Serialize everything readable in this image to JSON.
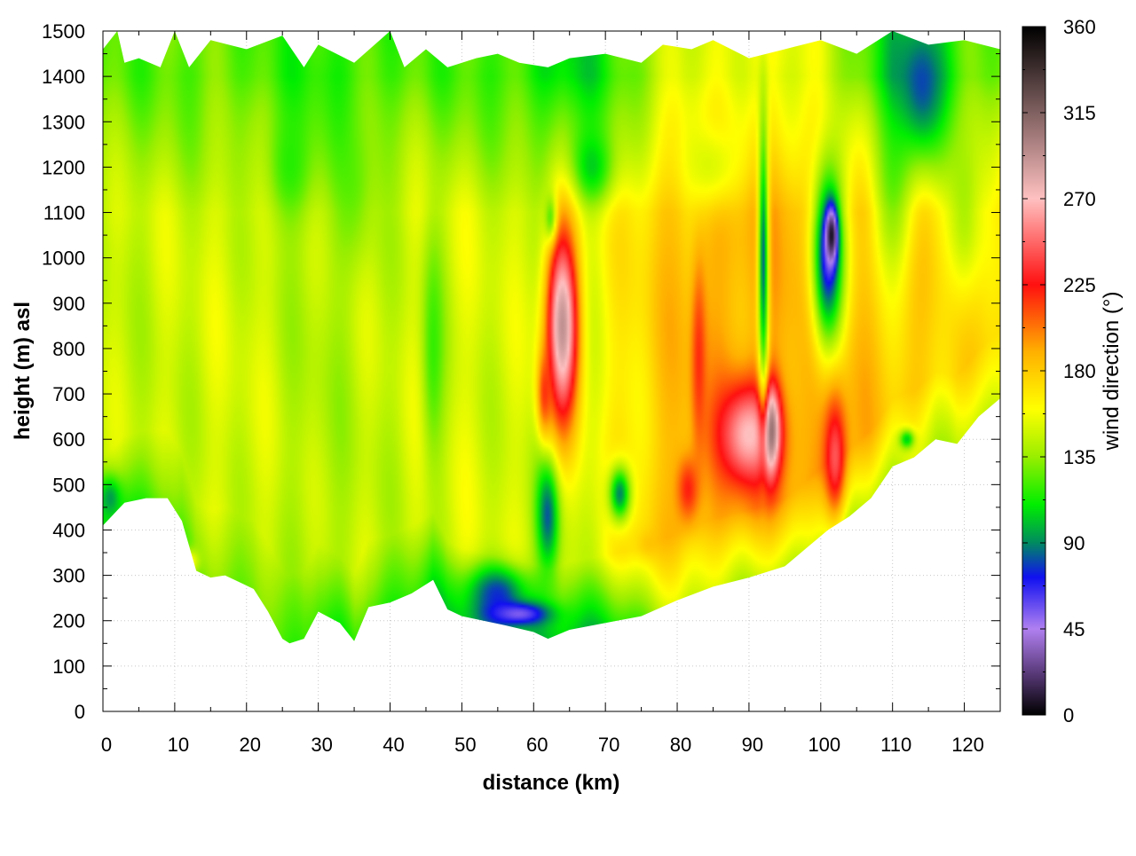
{
  "chart_data": {
    "type": "heatmap",
    "title": "",
    "xlabel": "distance (km)",
    "ylabel": "height (m) asl",
    "xlim": [
      0,
      125
    ],
    "ylim": [
      0,
      1500
    ],
    "x_ticks": [
      "0",
      "10",
      "20",
      "30",
      "40",
      "50",
      "60",
      "70",
      "80",
      "90",
      "100",
      "110",
      "120"
    ],
    "y_ticks": [
      "0",
      "100",
      "200",
      "300",
      "400",
      "500",
      "600",
      "700",
      "800",
      "900",
      "1000",
      "1100",
      "1200",
      "1300",
      "1400",
      "1500"
    ],
    "grid": true,
    "colorbar": {
      "label": "wind direction (°)",
      "range": [
        0,
        360
      ],
      "ticks": [
        "0",
        "45",
        "90",
        "135",
        "180",
        "225",
        "270",
        "315",
        "360"
      ],
      "stops": [
        {
          "value": 0,
          "color": "#000000"
        },
        {
          "value": 22,
          "color": "#5a3a7a"
        },
        {
          "value": 45,
          "color": "#b080f0"
        },
        {
          "value": 72,
          "color": "#1010f0"
        },
        {
          "value": 90,
          "color": "#008a60"
        },
        {
          "value": 110,
          "color": "#00ee00"
        },
        {
          "value": 135,
          "color": "#99ee00"
        },
        {
          "value": 160,
          "color": "#ffff00"
        },
        {
          "value": 190,
          "color": "#ffb000"
        },
        {
          "value": 225,
          "color": "#ff1010"
        },
        {
          "value": 270,
          "color": "#ffc0c0"
        },
        {
          "value": 315,
          "color": "#806060"
        },
        {
          "value": 360,
          "color": "#000000"
        }
      ]
    },
    "terrain_height_m": {
      "x": [
        0,
        3,
        6,
        9,
        11,
        13,
        15,
        17,
        19,
        21,
        23,
        25,
        26,
        28,
        30,
        33,
        35,
        37,
        40,
        43,
        46,
        48,
        50,
        53,
        56,
        60,
        62,
        65,
        70,
        75,
        80,
        85,
        90,
        95,
        98,
        101,
        104,
        107,
        110,
        113,
        116,
        119,
        122,
        125
      ],
      "y": [
        410,
        460,
        470,
        470,
        420,
        310,
        295,
        300,
        285,
        270,
        220,
        160,
        150,
        160,
        220,
        195,
        155,
        230,
        240,
        260,
        290,
        225,
        210,
        200,
        190,
        175,
        160,
        180,
        195,
        210,
        245,
        275,
        295,
        320,
        360,
        400,
        430,
        470,
        540,
        560,
        600,
        590,
        650,
        690
      ]
    },
    "top_edge_m": {
      "x": [
        0,
        2,
        3,
        5,
        8,
        10,
        12,
        15,
        20,
        25,
        28,
        30,
        35,
        40,
        42,
        45,
        48,
        52,
        55,
        58,
        62,
        65,
        70,
        75,
        78,
        82,
        85,
        90,
        95,
        100,
        105,
        110,
        115,
        120,
        125
      ],
      "y": [
        1460,
        1500,
        1430,
        1440,
        1420,
        1500,
        1420,
        1480,
        1460,
        1490,
        1420,
        1470,
        1430,
        1500,
        1420,
        1460,
        1420,
        1440,
        1450,
        1430,
        1420,
        1440,
        1450,
        1430,
        1470,
        1460,
        1480,
        1440,
        1460,
        1480,
        1450,
        1500,
        1470,
        1480,
        1460
      ]
    },
    "base_field": {
      "profile_x": [
        0,
        20,
        30,
        45,
        55,
        65,
        70,
        80,
        90,
        100,
        110,
        125
      ],
      "mid_deg": [
        145,
        150,
        140,
        150,
        150,
        145,
        160,
        185,
        190,
        190,
        180,
        175
      ],
      "top_deg": [
        125,
        125,
        115,
        125,
        120,
        105,
        115,
        150,
        160,
        150,
        110,
        130
      ],
      "low_deg": [
        115,
        130,
        120,
        115,
        105,
        100,
        110,
        150,
        150,
        145,
        145,
        150
      ]
    },
    "features": [
      {
        "x": 1,
        "y": 470,
        "sx": 1.5,
        "sy": 45,
        "value": 90,
        "amp": 0.9
      },
      {
        "x": 12,
        "y": 330,
        "sx": 1.2,
        "sy": 25,
        "value": 185,
        "amp": 0.7
      },
      {
        "x": 26,
        "y": 1200,
        "sx": 3,
        "sy": 120,
        "value": 112,
        "amp": 0.8
      },
      {
        "x": 35,
        "y": 1150,
        "sx": 2.5,
        "sy": 150,
        "value": 118,
        "amp": 0.6
      },
      {
        "x": 46,
        "y": 800,
        "sx": 1.5,
        "sy": 250,
        "value": 112,
        "amp": 0.8
      },
      {
        "x": 55,
        "y": 260,
        "sx": 4,
        "sy": 60,
        "value": 72,
        "amp": 0.9
      },
      {
        "x": 58,
        "y": 215,
        "sx": 4,
        "sy": 25,
        "value": 48,
        "amp": 0.9
      },
      {
        "x": 62,
        "y": 440,
        "sx": 1.5,
        "sy": 120,
        "value": 72,
        "amp": 0.9
      },
      {
        "x": 68,
        "y": 1200,
        "sx": 3,
        "sy": 80,
        "value": 95,
        "amp": 0.8
      },
      {
        "x": 62.5,
        "y": 1080,
        "sx": 0.8,
        "sy": 50,
        "value": 72,
        "amp": 0.9
      },
      {
        "x": 64,
        "y": 850,
        "sx": 2.2,
        "sy": 220,
        "value": 300,
        "amp": 0.95
      },
      {
        "x": 61.5,
        "y": 700,
        "sx": 1,
        "sy": 90,
        "value": 228,
        "amp": 0.8
      },
      {
        "x": 72,
        "y": 480,
        "sx": 1.5,
        "sy": 60,
        "value": 80,
        "amp": 0.9
      },
      {
        "x": 76,
        "y": 370,
        "sx": 1.5,
        "sy": 30,
        "value": 185,
        "amp": 0.7
      },
      {
        "x": 90,
        "y": 610,
        "sx": 4,
        "sy": 110,
        "value": 275,
        "amp": 0.95
      },
      {
        "x": 93,
        "y": 620,
        "sx": 1.2,
        "sy": 90,
        "value": 320,
        "amp": 0.9
      },
      {
        "x": 83,
        "y": 780,
        "sx": 1,
        "sy": 200,
        "value": 225,
        "amp": 0.85
      },
      {
        "x": 81.5,
        "y": 490,
        "sx": 1.5,
        "sy": 70,
        "value": 230,
        "amp": 0.85
      },
      {
        "x": 92,
        "y": 1000,
        "sx": 0.7,
        "sy": 300,
        "value": 72,
        "amp": 0.9
      },
      {
        "x": 101,
        "y": 1000,
        "sx": 2.2,
        "sy": 200,
        "value": 45,
        "amp": 0.85
      },
      {
        "x": 101.5,
        "y": 1050,
        "sx": 0.8,
        "sy": 60,
        "value": 2,
        "amp": 0.95
      },
      {
        "x": 102,
        "y": 560,
        "sx": 1.5,
        "sy": 130,
        "value": 250,
        "amp": 0.9
      },
      {
        "x": 114,
        "y": 1380,
        "sx": 3.5,
        "sy": 150,
        "value": 72,
        "amp": 0.85
      },
      {
        "x": 110,
        "y": 1150,
        "sx": 3,
        "sy": 200,
        "value": 100,
        "amp": 0.6
      },
      {
        "x": 120,
        "y": 1100,
        "sx": 2.5,
        "sy": 200,
        "value": 115,
        "amp": 0.6
      },
      {
        "x": 112,
        "y": 600,
        "sx": 1,
        "sy": 20,
        "value": 90,
        "amp": 0.8
      },
      {
        "x": 85,
        "y": 1200,
        "sx": 4,
        "sy": 100,
        "value": 130,
        "amp": 0.6
      }
    ]
  }
}
